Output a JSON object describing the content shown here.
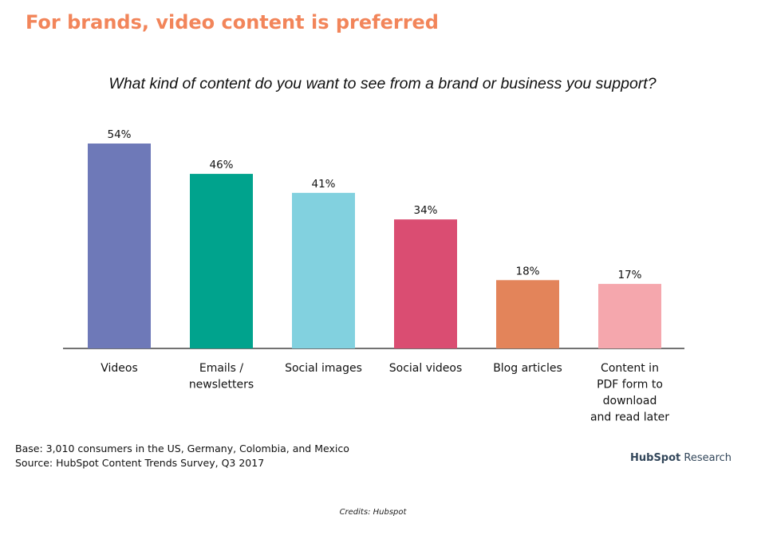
{
  "header": {
    "headline": "For brands, video content is preferred",
    "question": "What kind of content do you want to see from a brand or business you support?"
  },
  "chart_data": {
    "type": "bar",
    "categories": [
      [
        "Videos"
      ],
      [
        "Emails /",
        "newsletters"
      ],
      [
        "Social images"
      ],
      [
        "Social videos"
      ],
      [
        "Blog articles"
      ],
      [
        "Content in",
        "PDF form to",
        "download",
        "and read later"
      ]
    ],
    "values": [
      54,
      46,
      41,
      34,
      18,
      17
    ],
    "value_labels": [
      "54%",
      "46%",
      "41%",
      "34%",
      "18%",
      "17%"
    ],
    "unit": "%",
    "colors": [
      "#6e79b8",
      "#00a38d",
      "#82d1df",
      "#da4d72",
      "#e3845a",
      "#f5a7ad"
    ],
    "ylim": [
      0,
      54
    ],
    "grid": false,
    "legend": "none"
  },
  "footer": {
    "base": "Base: 3,010 consumers in the US, Germany, Colombia, and Mexico",
    "source": "Source: HubSpot Content Trends Survey, Q3 2017",
    "brand_name": "HubSpot",
    "brand_suffix": "Research",
    "credits": "Credits: Hubspot"
  },
  "colors": {
    "headline": "#f2855a",
    "axis": "#444444",
    "brand": "#33475b"
  }
}
